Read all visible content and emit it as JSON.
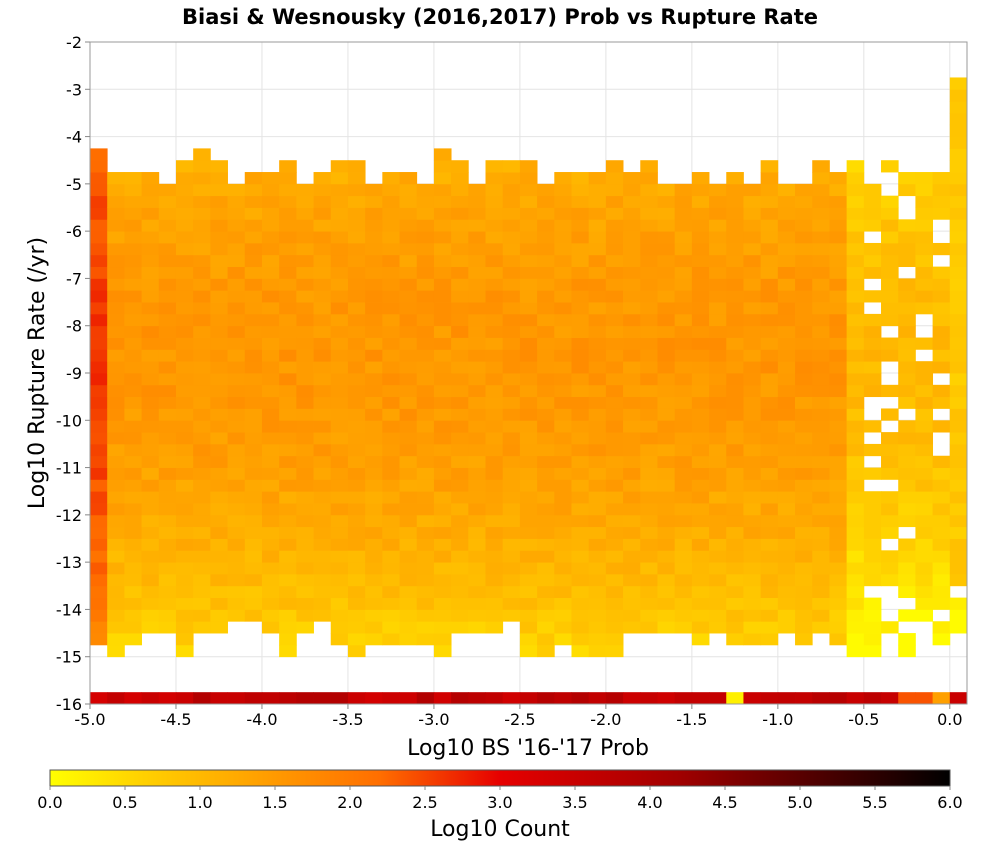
{
  "chart_data": {
    "type": "heatmap",
    "title": "Biasi & Wesnousky (2016,2017) Prob vs Rupture Rate",
    "xlabel": "Log10 BS '16-'17 Prob",
    "ylabel": "Log10 Rupture Rate (/yr)",
    "xlim": [
      -5.0,
      0.1
    ],
    "ylim": [
      -16,
      -2
    ],
    "xticks": [
      "-5.0",
      "-4.5",
      "-4.0",
      "-3.5",
      "-3.0",
      "-2.5",
      "-2.0",
      "-1.5",
      "-1.0",
      "-0.5",
      "0.0"
    ],
    "yticks": [
      "-2",
      "-3",
      "-4",
      "-5",
      "-6",
      "-7",
      "-8",
      "-9",
      "-10",
      "-11",
      "-12",
      "-13",
      "-14",
      "-15",
      "-16"
    ],
    "grid": true,
    "bin_width_x": 0.1,
    "bin_width_y": 0.25,
    "description_of_bins": "Rows of log10 counts per rupture-rate row; x bins from -5.0 to 0.1 in 0.1 steps",
    "colorbar": {
      "label": "Log10 Count",
      "min": 0.0,
      "max": 6.0,
      "ticks": [
        "0.0",
        "0.5",
        "1.0",
        "1.5",
        "2.0",
        "2.5",
        "3.0",
        "3.5",
        "4.0",
        "4.5",
        "5.0",
        "5.5",
        "6.0"
      ],
      "colors": [
        "#ffff00",
        "#ffd200",
        "#ffa000",
        "#ff6e00",
        "#e60000",
        "#a00000",
        "#000000"
      ],
      "stops": [
        0.0,
        0.6,
        1.4,
        2.2,
        3.0,
        4.2,
        6.0
      ],
      "orientation": "horizontal",
      "placement": "bottom"
    }
  }
}
